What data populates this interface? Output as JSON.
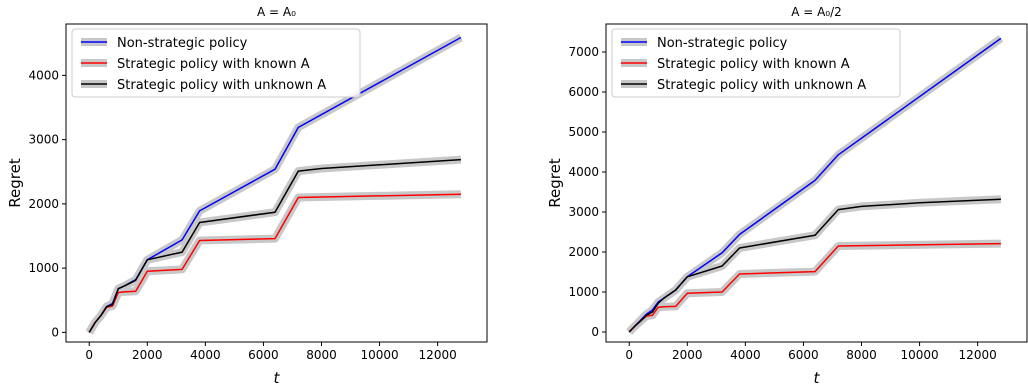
{
  "chart_data": [
    {
      "type": "line",
      "title": "A = A₀",
      "xlabel": "t",
      "ylabel": "Regret",
      "xlim": [
        -800,
        13700
      ],
      "ylim": [
        -150,
        4800
      ],
      "xticks": [
        0,
        2000,
        4000,
        6000,
        8000,
        10000,
        12000
      ],
      "yticks": [
        0,
        1000,
        2000,
        3000,
        4000
      ],
      "grid": false,
      "legend_position": "top-left",
      "series": [
        {
          "name": "Non-strategic policy",
          "color": "#0000ff",
          "x": [
            0,
            200,
            400,
            600,
            800,
            1000,
            1200,
            1600,
            2000,
            3200,
            3800,
            6400,
            7200,
            12800
          ],
          "y": [
            0,
            150,
            260,
            400,
            450,
            680,
            720,
            820,
            1130,
            1440,
            1890,
            2540,
            3190,
            4590
          ]
        },
        {
          "name": "Strategic policy with known A",
          "color": "#ff0000",
          "x": [
            0,
            200,
            400,
            600,
            800,
            1000,
            1200,
            1600,
            2000,
            3200,
            3800,
            6400,
            7200,
            12800
          ],
          "y": [
            0,
            150,
            260,
            390,
            410,
            620,
            630,
            640,
            950,
            980,
            1430,
            1460,
            2100,
            2150
          ]
        },
        {
          "name": "Strategic policy with unknown A",
          "color": "#000000",
          "x": [
            0,
            200,
            400,
            600,
            800,
            1000,
            1200,
            1600,
            2000,
            3200,
            3800,
            6400,
            7200,
            8000,
            12800
          ],
          "y": [
            0,
            150,
            260,
            400,
            430,
            680,
            720,
            810,
            1130,
            1250,
            1710,
            1870,
            2510,
            2550,
            2690
          ]
        }
      ]
    },
    {
      "type": "line",
      "title": "A = A₀/2",
      "xlabel": "t",
      "ylabel": "Regret",
      "xlim": [
        -800,
        13700
      ],
      "ylim": [
        -250,
        7700
      ],
      "xticks": [
        0,
        2000,
        4000,
        6000,
        8000,
        10000,
        12000
      ],
      "yticks": [
        0,
        1000,
        2000,
        3000,
        4000,
        5000,
        6000,
        7000
      ],
      "grid": false,
      "legend_position": "top-left",
      "series": [
        {
          "name": "Non-strategic policy",
          "color": "#0000ff",
          "x": [
            0,
            200,
            400,
            600,
            800,
            1000,
            1200,
            1600,
            2000,
            3200,
            3800,
            6400,
            7200,
            12800
          ],
          "y": [
            0,
            150,
            300,
            450,
            550,
            750,
            850,
            1050,
            1380,
            1980,
            2440,
            3790,
            4430,
            7340
          ]
        },
        {
          "name": "Strategic policy with known A",
          "color": "#ff0000",
          "x": [
            0,
            200,
            400,
            600,
            800,
            1000,
            1200,
            1600,
            2000,
            3200,
            3800,
            6400,
            7200,
            12800
          ],
          "y": [
            0,
            150,
            280,
            400,
            420,
            620,
            630,
            640,
            970,
            1000,
            1450,
            1510,
            2150,
            2210
          ]
        },
        {
          "name": "Strategic policy with unknown A",
          "color": "#000000",
          "x": [
            0,
            200,
            400,
            600,
            800,
            1000,
            1200,
            1600,
            2000,
            3200,
            3800,
            6400,
            7200,
            8000,
            10000,
            12800
          ],
          "y": [
            0,
            150,
            280,
            420,
            500,
            720,
            850,
            1050,
            1380,
            1650,
            2100,
            2420,
            3060,
            3140,
            3230,
            3320
          ]
        }
      ]
    }
  ]
}
